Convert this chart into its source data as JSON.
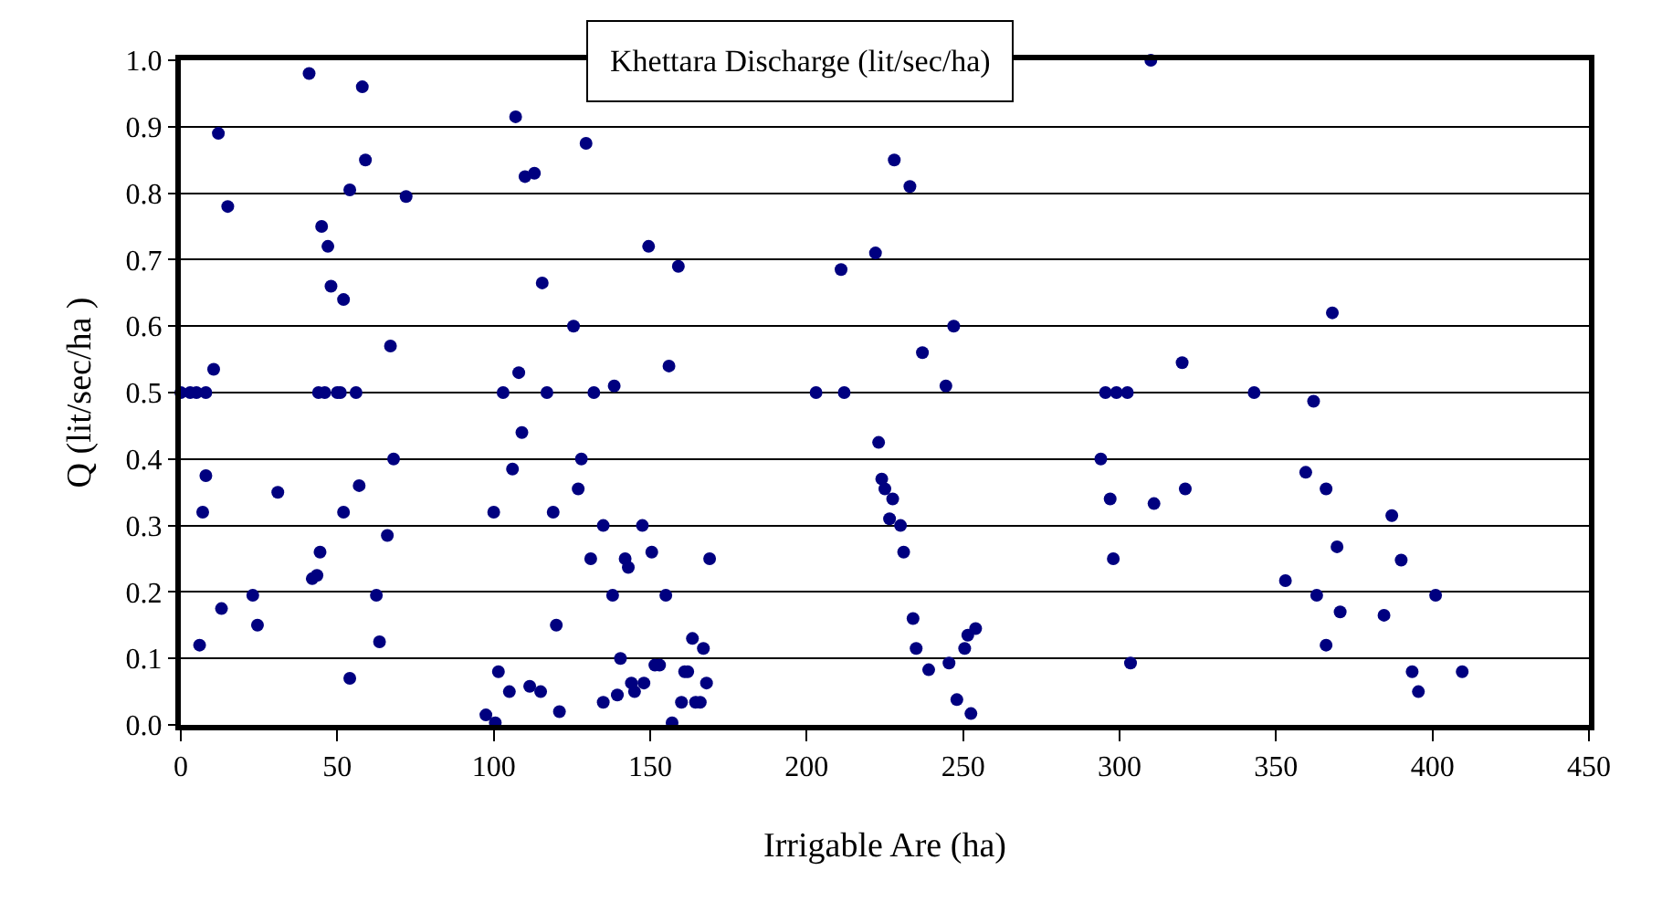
{
  "chart_data": {
    "type": "scatter",
    "title": "Khettara Discharge (lit/sec/ha)",
    "xlabel": "Irrigable Are (ha)",
    "ylabel": "Q (lit/sec/ha )",
    "x": [
      0,
      3,
      5,
      8,
      12,
      15,
      10.5,
      8,
      7,
      6,
      13,
      23,
      24.5,
      31,
      41,
      58,
      59,
      54,
      72,
      45,
      47,
      48,
      52,
      67,
      44,
      46,
      50,
      51,
      56,
      68,
      57,
      52,
      66,
      42,
      43.5,
      44.5,
      62.5,
      63.5,
      54,
      107,
      110,
      113,
      103,
      108,
      109,
      106,
      100,
      101.5,
      105,
      97.5,
      100.5,
      129.5,
      149.5,
      159,
      115.5,
      125.5,
      156,
      138.5,
      117,
      132,
      203,
      128,
      127,
      119,
      135,
      147.5,
      131,
      142,
      143,
      150.5,
      169,
      138,
      155,
      120,
      163.5,
      167,
      140.5,
      151.5,
      153,
      161,
      162,
      111.5,
      115,
      144,
      148,
      145,
      168,
      139.5,
      135,
      121,
      160,
      164.5,
      166,
      157,
      228,
      233,
      222,
      211,
      247,
      237,
      244.5,
      212,
      295.5,
      299,
      302.5,
      223,
      294,
      224,
      225,
      227.5,
      297,
      226.5,
      230,
      231,
      298,
      234,
      235,
      251.5,
      254,
      250.5,
      239,
      245.5,
      303.5,
      248,
      252.5,
      310,
      368,
      320,
      343,
      362,
      359.5,
      366,
      311,
      321,
      387,
      369.5,
      390,
      353,
      363,
      401,
      370.5,
      384.5,
      366,
      393.5,
      409.5,
      395.5
    ],
    "values": [
      0.5,
      0.5,
      0.5,
      0.5,
      0.89,
      0.78,
      0.535,
      0.375,
      0.32,
      0.12,
      0.175,
      0.195,
      0.15,
      0.35,
      0.98,
      0.96,
      0.85,
      0.805,
      0.795,
      0.75,
      0.72,
      0.66,
      0.64,
      0.57,
      0.5,
      0.5,
      0.5,
      0.5,
      0.5,
      0.4,
      0.36,
      0.32,
      0.285,
      0.22,
      0.225,
      0.26,
      0.195,
      0.125,
      0.07,
      0.915,
      0.825,
      0.83,
      0.5,
      0.53,
      0.44,
      0.385,
      0.32,
      0.08,
      0.05,
      0.015,
      0.003,
      0.875,
      0.72,
      0.69,
      0.665,
      0.6,
      0.54,
      0.51,
      0.5,
      0.5,
      0.5,
      0.4,
      0.355,
      0.32,
      0.3,
      0.3,
      0.25,
      0.25,
      0.237,
      0.26,
      0.25,
      0.195,
      0.195,
      0.15,
      0.13,
      0.115,
      0.1,
      0.09,
      0.09,
      0.08,
      0.08,
      0.058,
      0.05,
      0.063,
      0.063,
      0.05,
      0.063,
      0.045,
      0.034,
      0.02,
      0.034,
      0.034,
      0.034,
      0.003,
      0.85,
      0.81,
      0.71,
      0.685,
      0.6,
      0.56,
      0.51,
      0.5,
      0.5,
      0.5,
      0.5,
      0.425,
      0.4,
      0.37,
      0.355,
      0.34,
      0.34,
      0.31,
      0.3,
      0.26,
      0.25,
      0.16,
      0.115,
      0.135,
      0.145,
      0.115,
      0.083,
      0.093,
      0.093,
      0.038,
      0.017,
      1.0,
      0.62,
      0.545,
      0.5,
      0.487,
      0.38,
      0.355,
      0.333,
      0.355,
      0.315,
      0.268,
      0.248,
      0.217,
      0.195,
      0.195,
      0.17,
      0.165,
      0.12,
      0.08,
      0.08,
      0.05
    ],
    "color": "#000080",
    "marker": "circle",
    "xlim": [
      0,
      450
    ],
    "xticks": [
      0,
      50,
      100,
      150,
      200,
      250,
      300,
      350,
      400,
      450
    ],
    "ylim": [
      0,
      1.0
    ],
    "yticks": [
      {
        "value": 0,
        "label": "0.0"
      },
      {
        "value": 0.1,
        "label": "0.1"
      },
      {
        "value": 0.2,
        "label": "0.2"
      },
      {
        "value": 0.3,
        "label": "0.3"
      },
      {
        "value": 0.4,
        "label": "0.4"
      },
      {
        "value": 0.5,
        "label": "0.5"
      },
      {
        "value": 0.6,
        "label": "0.6"
      },
      {
        "value": 0.7,
        "label": "0.7"
      },
      {
        "value": 0.8,
        "label": "0.8"
      },
      {
        "value": 0.9,
        "label": "0.9"
      },
      {
        "value": 1.0,
        "label": "1.0"
      }
    ],
    "grid": "y"
  }
}
